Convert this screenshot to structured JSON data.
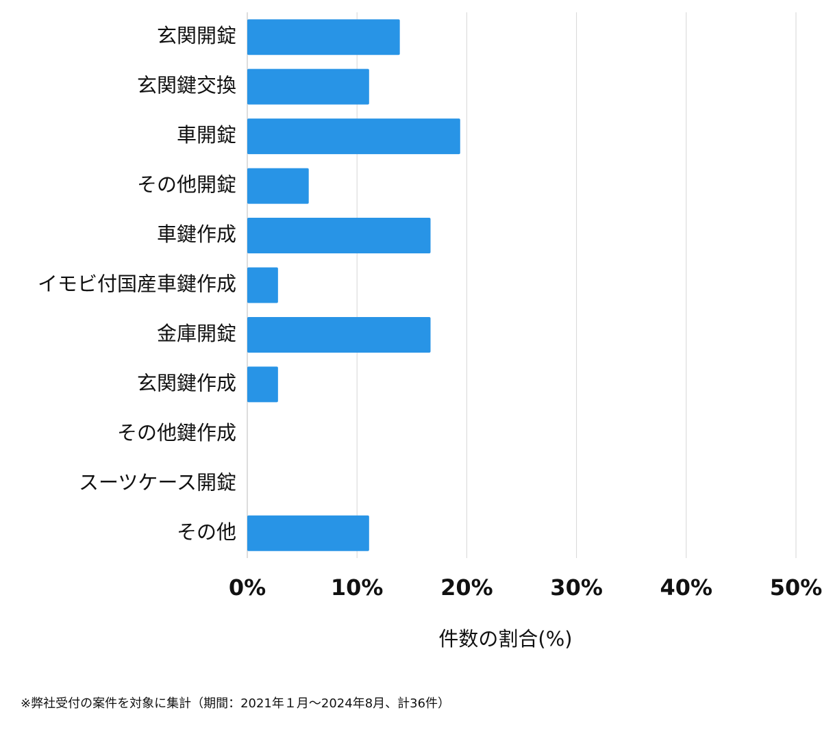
{
  "chart_data": {
    "type": "bar",
    "orientation": "horizontal",
    "categories": [
      "玄関開錠",
      "玄関鍵交換",
      "車開錠",
      "その他開錠",
      "車鍵作成",
      "イモビ付国産車鍵作成",
      "金庫開錠",
      "玄関鍵作成",
      "その他鍵作成",
      "スーツケース開錠",
      "その他"
    ],
    "values": [
      13.9,
      11.1,
      19.4,
      5.6,
      16.7,
      2.8,
      16.7,
      2.8,
      0,
      0,
      11.1
    ],
    "color": "#2894e6",
    "xlim": [
      0,
      50
    ],
    "xticks": [
      {
        "value": 0,
        "label": "0%"
      },
      {
        "value": 10,
        "label": "10%"
      },
      {
        "value": 20,
        "label": "20%"
      },
      {
        "value": 30,
        "label": "30%"
      },
      {
        "value": 40,
        "label": "40%"
      },
      {
        "value": 50,
        "label": "50%"
      }
    ],
    "xlabel": "件数の割合(%)",
    "grid": true,
    "footnote": "※弊社受付の案件を対象に集計（期間：2021年１月〜2024年8月、計36件）"
  }
}
